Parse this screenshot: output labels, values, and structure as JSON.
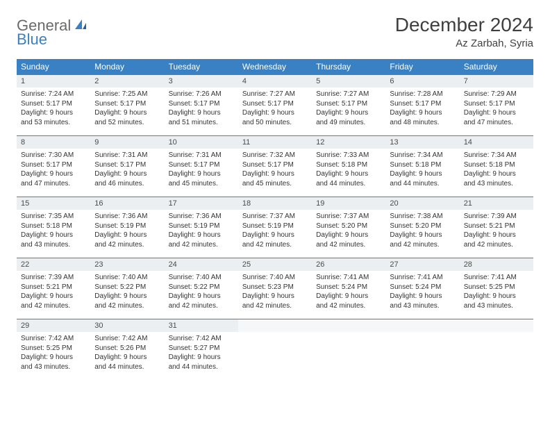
{
  "logo": {
    "text1": "General",
    "text2": "Blue"
  },
  "title": "December 2024",
  "location": "Az Zarbah, Syria",
  "colors": {
    "header_bg": "#3a81c4",
    "header_text": "#ffffff",
    "daynum_bg": "#eceff1",
    "border": "#3a81c4",
    "text": "#333333",
    "logo_gray": "#6a6a6a",
    "logo_blue": "#3a81c4",
    "page_bg": "#ffffff"
  },
  "day_headers": [
    "Sunday",
    "Monday",
    "Tuesday",
    "Wednesday",
    "Thursday",
    "Friday",
    "Saturday"
  ],
  "weeks": [
    [
      {
        "n": "1",
        "sunrise": "Sunrise: 7:24 AM",
        "sunset": "Sunset: 5:17 PM",
        "daylight": "Daylight: 9 hours and 53 minutes."
      },
      {
        "n": "2",
        "sunrise": "Sunrise: 7:25 AM",
        "sunset": "Sunset: 5:17 PM",
        "daylight": "Daylight: 9 hours and 52 minutes."
      },
      {
        "n": "3",
        "sunrise": "Sunrise: 7:26 AM",
        "sunset": "Sunset: 5:17 PM",
        "daylight": "Daylight: 9 hours and 51 minutes."
      },
      {
        "n": "4",
        "sunrise": "Sunrise: 7:27 AM",
        "sunset": "Sunset: 5:17 PM",
        "daylight": "Daylight: 9 hours and 50 minutes."
      },
      {
        "n": "5",
        "sunrise": "Sunrise: 7:27 AM",
        "sunset": "Sunset: 5:17 PM",
        "daylight": "Daylight: 9 hours and 49 minutes."
      },
      {
        "n": "6",
        "sunrise": "Sunrise: 7:28 AM",
        "sunset": "Sunset: 5:17 PM",
        "daylight": "Daylight: 9 hours and 48 minutes."
      },
      {
        "n": "7",
        "sunrise": "Sunrise: 7:29 AM",
        "sunset": "Sunset: 5:17 PM",
        "daylight": "Daylight: 9 hours and 47 minutes."
      }
    ],
    [
      {
        "n": "8",
        "sunrise": "Sunrise: 7:30 AM",
        "sunset": "Sunset: 5:17 PM",
        "daylight": "Daylight: 9 hours and 47 minutes."
      },
      {
        "n": "9",
        "sunrise": "Sunrise: 7:31 AM",
        "sunset": "Sunset: 5:17 PM",
        "daylight": "Daylight: 9 hours and 46 minutes."
      },
      {
        "n": "10",
        "sunrise": "Sunrise: 7:31 AM",
        "sunset": "Sunset: 5:17 PM",
        "daylight": "Daylight: 9 hours and 45 minutes."
      },
      {
        "n": "11",
        "sunrise": "Sunrise: 7:32 AM",
        "sunset": "Sunset: 5:17 PM",
        "daylight": "Daylight: 9 hours and 45 minutes."
      },
      {
        "n": "12",
        "sunrise": "Sunrise: 7:33 AM",
        "sunset": "Sunset: 5:18 PM",
        "daylight": "Daylight: 9 hours and 44 minutes."
      },
      {
        "n": "13",
        "sunrise": "Sunrise: 7:34 AM",
        "sunset": "Sunset: 5:18 PM",
        "daylight": "Daylight: 9 hours and 44 minutes."
      },
      {
        "n": "14",
        "sunrise": "Sunrise: 7:34 AM",
        "sunset": "Sunset: 5:18 PM",
        "daylight": "Daylight: 9 hours and 43 minutes."
      }
    ],
    [
      {
        "n": "15",
        "sunrise": "Sunrise: 7:35 AM",
        "sunset": "Sunset: 5:18 PM",
        "daylight": "Daylight: 9 hours and 43 minutes."
      },
      {
        "n": "16",
        "sunrise": "Sunrise: 7:36 AM",
        "sunset": "Sunset: 5:19 PM",
        "daylight": "Daylight: 9 hours and 42 minutes."
      },
      {
        "n": "17",
        "sunrise": "Sunrise: 7:36 AM",
        "sunset": "Sunset: 5:19 PM",
        "daylight": "Daylight: 9 hours and 42 minutes."
      },
      {
        "n": "18",
        "sunrise": "Sunrise: 7:37 AM",
        "sunset": "Sunset: 5:19 PM",
        "daylight": "Daylight: 9 hours and 42 minutes."
      },
      {
        "n": "19",
        "sunrise": "Sunrise: 7:37 AM",
        "sunset": "Sunset: 5:20 PM",
        "daylight": "Daylight: 9 hours and 42 minutes."
      },
      {
        "n": "20",
        "sunrise": "Sunrise: 7:38 AM",
        "sunset": "Sunset: 5:20 PM",
        "daylight": "Daylight: 9 hours and 42 minutes."
      },
      {
        "n": "21",
        "sunrise": "Sunrise: 7:39 AM",
        "sunset": "Sunset: 5:21 PM",
        "daylight": "Daylight: 9 hours and 42 minutes."
      }
    ],
    [
      {
        "n": "22",
        "sunrise": "Sunrise: 7:39 AM",
        "sunset": "Sunset: 5:21 PM",
        "daylight": "Daylight: 9 hours and 42 minutes."
      },
      {
        "n": "23",
        "sunrise": "Sunrise: 7:40 AM",
        "sunset": "Sunset: 5:22 PM",
        "daylight": "Daylight: 9 hours and 42 minutes."
      },
      {
        "n": "24",
        "sunrise": "Sunrise: 7:40 AM",
        "sunset": "Sunset: 5:22 PM",
        "daylight": "Daylight: 9 hours and 42 minutes."
      },
      {
        "n": "25",
        "sunrise": "Sunrise: 7:40 AM",
        "sunset": "Sunset: 5:23 PM",
        "daylight": "Daylight: 9 hours and 42 minutes."
      },
      {
        "n": "26",
        "sunrise": "Sunrise: 7:41 AM",
        "sunset": "Sunset: 5:24 PM",
        "daylight": "Daylight: 9 hours and 42 minutes."
      },
      {
        "n": "27",
        "sunrise": "Sunrise: 7:41 AM",
        "sunset": "Sunset: 5:24 PM",
        "daylight": "Daylight: 9 hours and 43 minutes."
      },
      {
        "n": "28",
        "sunrise": "Sunrise: 7:41 AM",
        "sunset": "Sunset: 5:25 PM",
        "daylight": "Daylight: 9 hours and 43 minutes."
      }
    ],
    [
      {
        "n": "29",
        "sunrise": "Sunrise: 7:42 AM",
        "sunset": "Sunset: 5:25 PM",
        "daylight": "Daylight: 9 hours and 43 minutes."
      },
      {
        "n": "30",
        "sunrise": "Sunrise: 7:42 AM",
        "sunset": "Sunset: 5:26 PM",
        "daylight": "Daylight: 9 hours and 44 minutes."
      },
      {
        "n": "31",
        "sunrise": "Sunrise: 7:42 AM",
        "sunset": "Sunset: 5:27 PM",
        "daylight": "Daylight: 9 hours and 44 minutes."
      },
      {
        "n": "",
        "sunrise": "",
        "sunset": "",
        "daylight": ""
      },
      {
        "n": "",
        "sunrise": "",
        "sunset": "",
        "daylight": ""
      },
      {
        "n": "",
        "sunrise": "",
        "sunset": "",
        "daylight": ""
      },
      {
        "n": "",
        "sunrise": "",
        "sunset": "",
        "daylight": ""
      }
    ]
  ]
}
